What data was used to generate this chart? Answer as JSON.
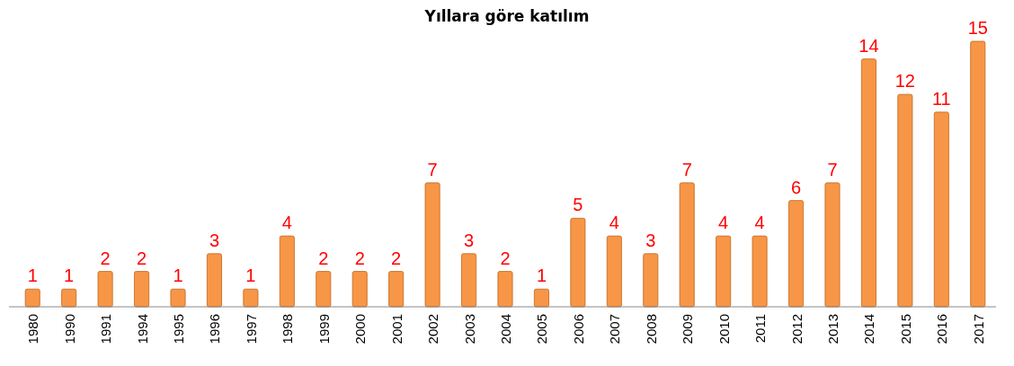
{
  "chart_data": {
    "type": "bar",
    "title": "Yıllara göre katılım",
    "categories": [
      "1980",
      "1990",
      "1991",
      "1994",
      "1995",
      "1996",
      "1997",
      "1998",
      "1999",
      "2000",
      "2001",
      "2002",
      "2003",
      "2004",
      "2005",
      "2006",
      "2007",
      "2008",
      "2009",
      "2010",
      "2011",
      "2012",
      "2013",
      "2014",
      "2015",
      "2016",
      "2017"
    ],
    "values": [
      1,
      1,
      2,
      2,
      1,
      3,
      1,
      4,
      2,
      2,
      2,
      7,
      3,
      2,
      1,
      5,
      4,
      3,
      7,
      4,
      4,
      6,
      7,
      14,
      12,
      11,
      15
    ],
    "color": "#f79646",
    "data_labels": true,
    "tick_labels": "x"
  }
}
